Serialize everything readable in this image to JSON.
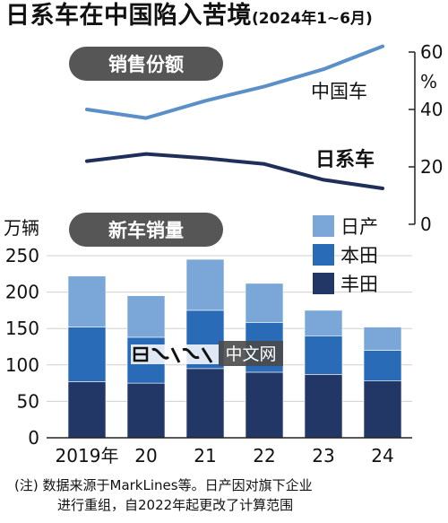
{
  "title": {
    "main": "日系车在中国陷入苦境",
    "period": "(2024年1~6月)"
  },
  "watermark": "中文网",
  "note": {
    "prefix": "(注)",
    "line1": "数据来源于MarkLines等。日产因对旗下企业",
    "line2": "进行重组，自2022年起更改了计算范围"
  },
  "colors": {
    "china_line": "#5b8fc7",
    "japan_line": "#1f2f5a",
    "nissan": "#7aa7d8",
    "honda": "#2a6bb8",
    "toyota": "#233766",
    "pill": "#565656",
    "axis": "#222222"
  },
  "chart_data": [
    {
      "type": "line",
      "title": "销售份额",
      "x": [
        "2019年",
        "20",
        "21",
        "22",
        "23",
        "24"
      ],
      "ylabel": "%",
      "ylim": [
        0,
        60
      ],
      "yticks": [
        0,
        20,
        40,
        60
      ],
      "series": [
        {
          "name": "中国车",
          "values": [
            40,
            37,
            43,
            48,
            54,
            62
          ]
        },
        {
          "name": "日系车",
          "values": [
            22,
            24.5,
            23,
            21,
            15.5,
            12.5
          ]
        }
      ]
    },
    {
      "type": "bar",
      "stacked": true,
      "title": "新车销量",
      "ylabel": "万辆",
      "categories": [
        "2019年",
        "20",
        "21",
        "22",
        "23",
        "24"
      ],
      "ylim": [
        0,
        250
      ],
      "yticks": [
        0,
        50,
        100,
        150,
        200,
        250
      ],
      "series": [
        {
          "name": "丰田",
          "values": [
            77,
            75,
            95,
            90,
            87,
            78
          ]
        },
        {
          "name": "本田",
          "values": [
            75,
            63,
            80,
            68,
            53,
            42
          ]
        },
        {
          "name": "日产",
          "values": [
            70,
            57,
            70,
            54,
            35,
            32
          ]
        }
      ]
    }
  ]
}
